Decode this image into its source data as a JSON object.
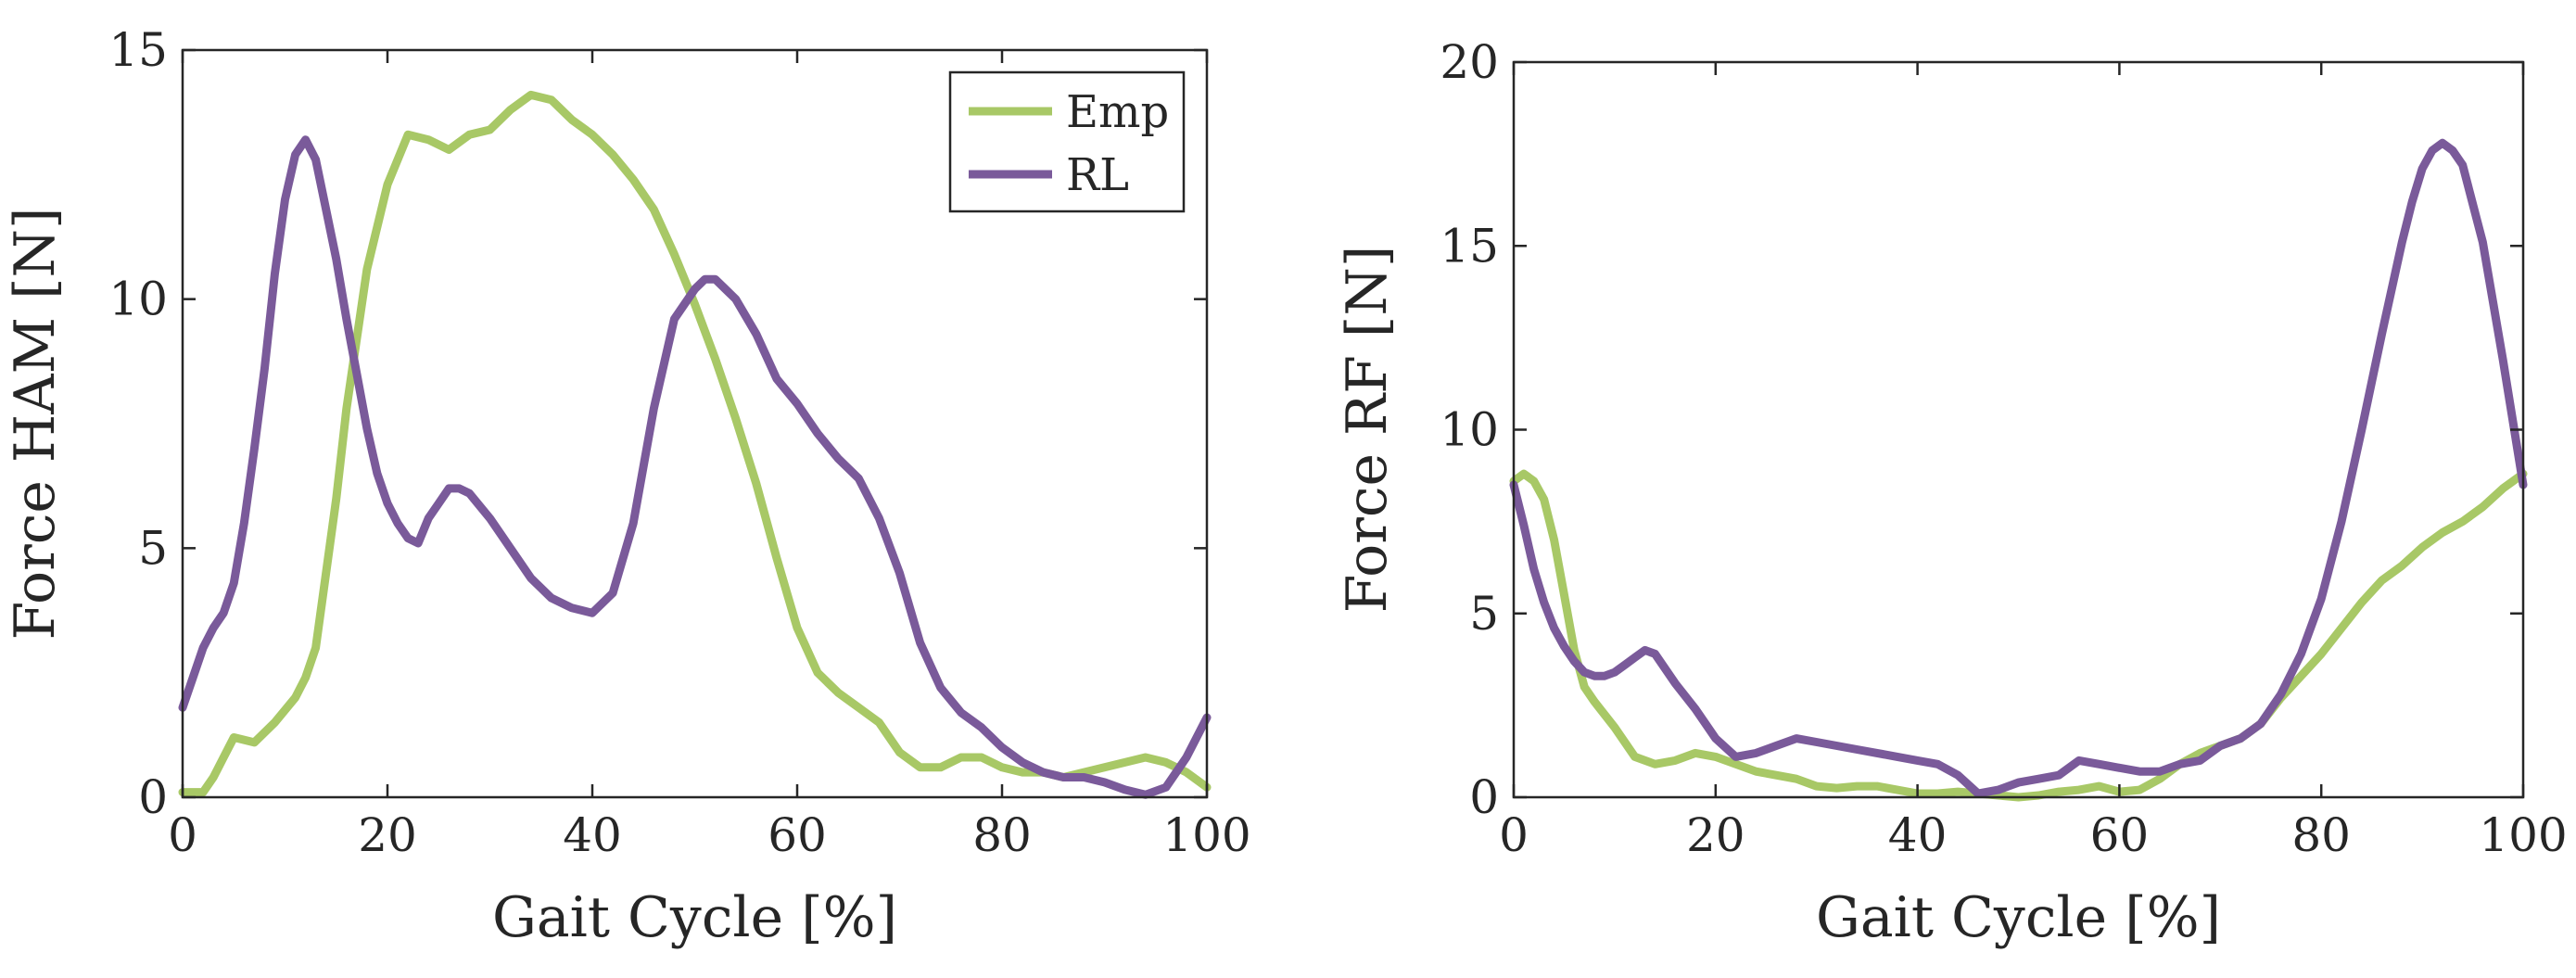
{
  "chart_data": [
    {
      "type": "line",
      "xlabel": "Gait Cycle [%]",
      "ylabel": "Force HAM [N]",
      "xlim": [
        0,
        100
      ],
      "ylim": [
        0,
        15
      ],
      "xticks": [
        0,
        20,
        40,
        60,
        80,
        100
      ],
      "yticks": [
        0,
        5,
        10,
        15
      ],
      "grid": false,
      "legend": {
        "placement": "top-right",
        "entries": [
          "Emp",
          "RL"
        ]
      },
      "series": [
        {
          "name": "Emp",
          "color": "#a8c866",
          "x": [
            0,
            2,
            3,
            4,
            5,
            7,
            9,
            11,
            12,
            13,
            14,
            15,
            16,
            18,
            20,
            22,
            24,
            26,
            28,
            30,
            32,
            34,
            36,
            38,
            40,
            42,
            44,
            46,
            48,
            50,
            52,
            54,
            56,
            58,
            60,
            62,
            64,
            66,
            68,
            70,
            72,
            74,
            76,
            78,
            80,
            82,
            84,
            86,
            88,
            90,
            92,
            94,
            96,
            98,
            100
          ],
          "y": [
            0.1,
            0.1,
            0.4,
            0.8,
            1.2,
            1.1,
            1.5,
            2.0,
            2.4,
            3.0,
            4.5,
            6.0,
            7.8,
            10.6,
            12.3,
            13.3,
            13.2,
            13.0,
            13.3,
            13.4,
            13.8,
            14.1,
            14.0,
            13.6,
            13.3,
            12.9,
            12.4,
            11.8,
            10.9,
            9.9,
            8.8,
            7.6,
            6.3,
            4.8,
            3.4,
            2.5,
            2.1,
            1.8,
            1.5,
            0.9,
            0.6,
            0.6,
            0.8,
            0.8,
            0.6,
            0.5,
            0.5,
            0.4,
            0.5,
            0.6,
            0.7,
            0.8,
            0.7,
            0.5,
            0.2
          ]
        },
        {
          "name": "RL",
          "color": "#7a5a9a",
          "x": [
            0,
            1,
            2,
            3,
            4,
            5,
            6,
            7,
            8,
            9,
            10,
            11,
            12,
            13,
            14,
            15,
            16,
            17,
            18,
            19,
            20,
            21,
            22,
            23,
            24,
            25,
            26,
            27,
            28,
            30,
            32,
            34,
            36,
            38,
            40,
            42,
            44,
            46,
            48,
            50,
            51,
            52,
            53,
            54,
            56,
            58,
            60,
            62,
            64,
            66,
            68,
            70,
            72,
            74,
            76,
            78,
            80,
            82,
            84,
            86,
            88,
            90,
            92,
            94,
            96,
            98,
            100
          ],
          "y": [
            1.8,
            2.4,
            3.0,
            3.4,
            3.7,
            4.3,
            5.5,
            7.0,
            8.6,
            10.5,
            12.0,
            12.9,
            13.2,
            12.8,
            11.8,
            10.8,
            9.6,
            8.5,
            7.4,
            6.5,
            5.9,
            5.5,
            5.2,
            5.1,
            5.6,
            5.9,
            6.2,
            6.2,
            6.1,
            5.6,
            5.0,
            4.4,
            4.0,
            3.8,
            3.7,
            4.1,
            5.5,
            7.8,
            9.6,
            10.2,
            10.4,
            10.4,
            10.2,
            10.0,
            9.3,
            8.4,
            7.9,
            7.3,
            6.8,
            6.4,
            5.6,
            4.5,
            3.1,
            2.2,
            1.7,
            1.4,
            1.0,
            0.7,
            0.5,
            0.4,
            0.4,
            0.3,
            0.15,
            0.05,
            0.2,
            0.8,
            1.6
          ]
        }
      ]
    },
    {
      "type": "line",
      "xlabel": "Gait Cycle [%]",
      "ylabel": "Force RF [N]",
      "xlim": [
        0,
        100
      ],
      "ylim": [
        0,
        20
      ],
      "xticks": [
        0,
        20,
        40,
        60,
        80,
        100
      ],
      "yticks": [
        0,
        5,
        10,
        15,
        20
      ],
      "grid": false,
      "series": [
        {
          "name": "Emp",
          "color": "#a8c866",
          "x": [
            0,
            1,
            2,
            3,
            4,
            5,
            6,
            7,
            8,
            10,
            12,
            14,
            16,
            18,
            20,
            22,
            24,
            26,
            28,
            30,
            32,
            34,
            36,
            38,
            40,
            42,
            44,
            46,
            48,
            50,
            52,
            54,
            56,
            58,
            60,
            62,
            64,
            66,
            68,
            70,
            72,
            74,
            76,
            78,
            80,
            82,
            84,
            86,
            88,
            90,
            92,
            94,
            96,
            98,
            100
          ],
          "y": [
            8.6,
            8.8,
            8.6,
            8.1,
            7.0,
            5.5,
            4.0,
            3.0,
            2.6,
            1.9,
            1.1,
            0.9,
            1.0,
            1.2,
            1.1,
            0.9,
            0.7,
            0.6,
            0.5,
            0.3,
            0.25,
            0.3,
            0.3,
            0.2,
            0.1,
            0.1,
            0.15,
            0.1,
            0.05,
            0.0,
            0.05,
            0.15,
            0.2,
            0.3,
            0.15,
            0.2,
            0.5,
            0.9,
            1.2,
            1.4,
            1.6,
            2.0,
            2.7,
            3.3,
            3.9,
            4.6,
            5.3,
            5.9,
            6.3,
            6.8,
            7.2,
            7.5,
            7.9,
            8.4,
            8.8
          ]
        },
        {
          "name": "RL",
          "color": "#7a5a9a",
          "x": [
            0,
            1,
            2,
            3,
            4,
            5,
            6,
            7,
            8,
            9,
            10,
            11,
            12,
            13,
            14,
            15,
            16,
            18,
            20,
            22,
            24,
            26,
            28,
            30,
            32,
            34,
            36,
            38,
            40,
            42,
            44,
            46,
            48,
            50,
            52,
            54,
            56,
            58,
            60,
            62,
            64,
            66,
            68,
            70,
            72,
            74,
            76,
            78,
            80,
            82,
            84,
            86,
            88,
            89,
            90,
            91,
            92,
            93,
            94,
            96,
            98,
            100
          ],
          "y": [
            8.5,
            7.4,
            6.2,
            5.3,
            4.6,
            4.1,
            3.7,
            3.4,
            3.3,
            3.3,
            3.4,
            3.6,
            3.8,
            4.0,
            3.9,
            3.5,
            3.1,
            2.4,
            1.6,
            1.1,
            1.2,
            1.4,
            1.6,
            1.5,
            1.4,
            1.3,
            1.2,
            1.1,
            1.0,
            0.9,
            0.6,
            0.1,
            0.2,
            0.4,
            0.5,
            0.6,
            1.0,
            0.9,
            0.8,
            0.7,
            0.7,
            0.9,
            1.0,
            1.4,
            1.6,
            2.0,
            2.8,
            3.9,
            5.4,
            7.5,
            10.0,
            12.6,
            15.1,
            16.2,
            17.1,
            17.6,
            17.8,
            17.6,
            17.2,
            15.1,
            11.9,
            8.5
          ]
        }
      ]
    }
  ]
}
